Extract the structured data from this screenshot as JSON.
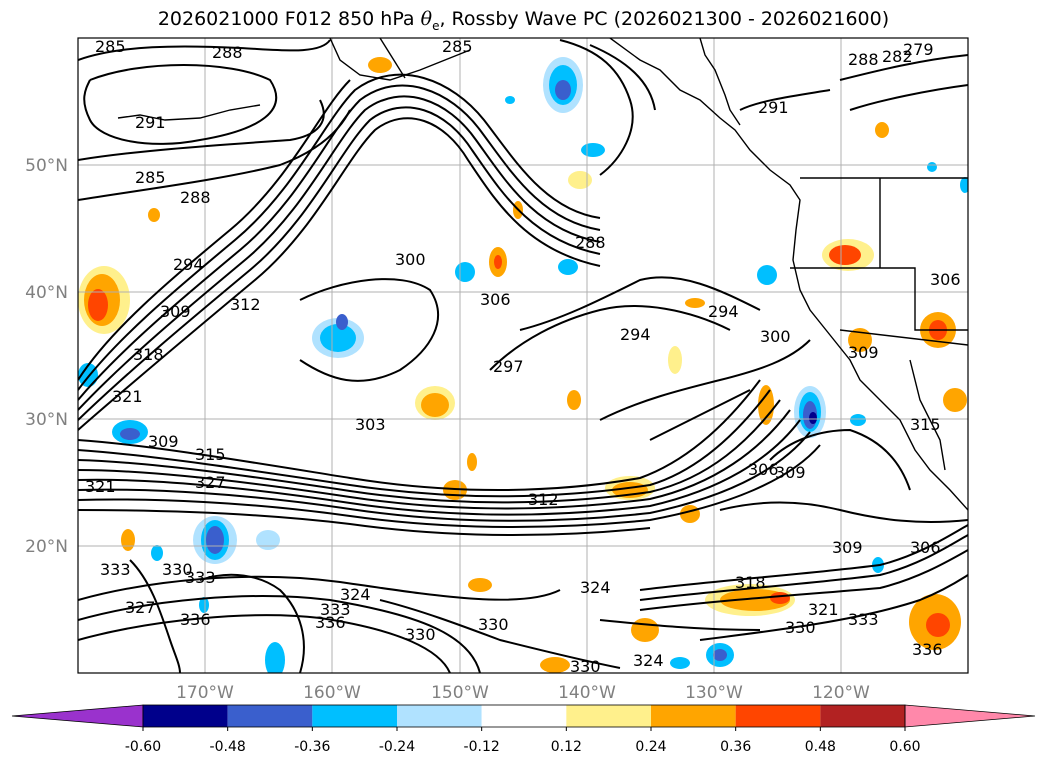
{
  "title": {
    "prefix": "2026021000 F012 850 hPa ",
    "symbol": "θ",
    "symbol_sub": "e",
    "suffix": ", Rossby Wave PC (2026021300 - 2026021600)"
  },
  "map": {
    "projection": "PlateCarree",
    "lon_range": [
      "180°W",
      "110°W"
    ],
    "lat_range": [
      "10°N",
      "60°N"
    ],
    "lat_ticks": [
      "20°N",
      "30°N",
      "40°N",
      "50°N"
    ],
    "lon_ticks": [
      "170°W",
      "160°W",
      "150°W",
      "140°W",
      "130°W",
      "120°W"
    ],
    "grid": true,
    "contour_labels": [
      "285",
      "288",
      "291",
      "294",
      "297",
      "300",
      "303",
      "306",
      "309",
      "312",
      "315",
      "318",
      "321",
      "324",
      "327",
      "330",
      "333",
      "336",
      "279",
      "282"
    ]
  },
  "colorbar": {
    "levels": [
      "-0.60",
      "-0.48",
      "-0.36",
      "-0.24",
      "-0.12",
      "0.12",
      "0.24",
      "0.36",
      "0.48",
      "0.60"
    ],
    "colors": [
      "#9a32cd",
      "#00008b",
      "#3a5fcd",
      "#00bfff",
      "#b0e2ff",
      "#ffffff",
      "#fff08c",
      "#ffa500",
      "#ff4500",
      "#b22222",
      "#ff88aa"
    ],
    "extend": "both"
  }
}
